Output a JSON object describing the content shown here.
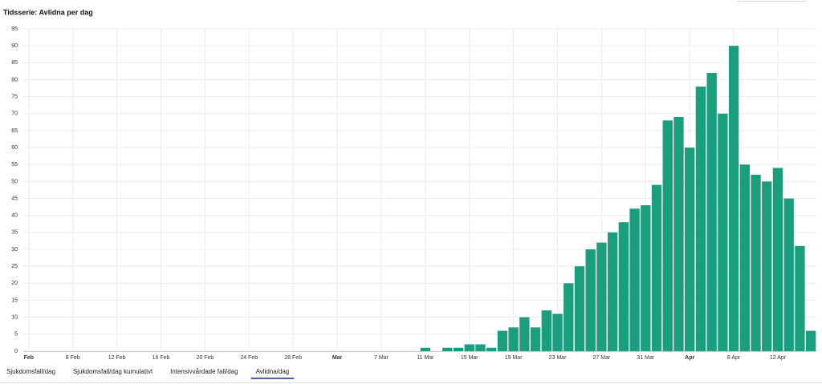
{
  "chart_data": {
    "type": "bar",
    "title": "Tidsserie: Avlidna per dag",
    "categories": [
      "Feb",
      null,
      null,
      null,
      "8 Feb",
      null,
      null,
      null,
      "12 Feb",
      null,
      null,
      null,
      "16 Feb",
      null,
      null,
      null,
      "20 Feb",
      null,
      null,
      null,
      "24 Feb",
      null,
      null,
      null,
      "28 Feb",
      null,
      null,
      null,
      "Mar",
      null,
      null,
      null,
      "7 Mar",
      null,
      null,
      null,
      "11 Mar",
      null,
      null,
      null,
      "15 Mar",
      null,
      null,
      null,
      "19 Mar",
      null,
      null,
      null,
      "23 Mar",
      null,
      null,
      null,
      "27 Mar",
      null,
      null,
      null,
      "31 Mar",
      null,
      null,
      null,
      "Apr",
      null,
      null,
      null,
      "8 Apr",
      null,
      null,
      null,
      "12 Apr",
      null,
      null,
      null
    ],
    "values": [
      0,
      0,
      0,
      0,
      0,
      0,
      0,
      0,
      0,
      0,
      0,
      0,
      0,
      0,
      0,
      0,
      0,
      0,
      0,
      0,
      0,
      0,
      0,
      0,
      0,
      0,
      0,
      0,
      0,
      0,
      0,
      0,
      0,
      0,
      0,
      0,
      1,
      0,
      1,
      1,
      2,
      2,
      1,
      6,
      7,
      10,
      7,
      12,
      11,
      20,
      25,
      30,
      32,
      35,
      38,
      42,
      43,
      49,
      68,
      69,
      60,
      78,
      82,
      70,
      90,
      55,
      52,
      50,
      54,
      45,
      31,
      6
    ],
    "color": "#1a9e7e",
    "ylim": [
      0,
      95
    ],
    "yticks": [
      0,
      5,
      10,
      15,
      20,
      25,
      30,
      35,
      40,
      45,
      50,
      55,
      60,
      65,
      70,
      75,
      80,
      85,
      90,
      95
    ],
    "grid": true
  },
  "tabs": [
    "Sjukdomsfall/dag",
    "Sjukdomsfall/dag kumulativt",
    "Intensivvårdade fall/dag",
    "Avlidna/dag"
  ],
  "active_tab": 3
}
